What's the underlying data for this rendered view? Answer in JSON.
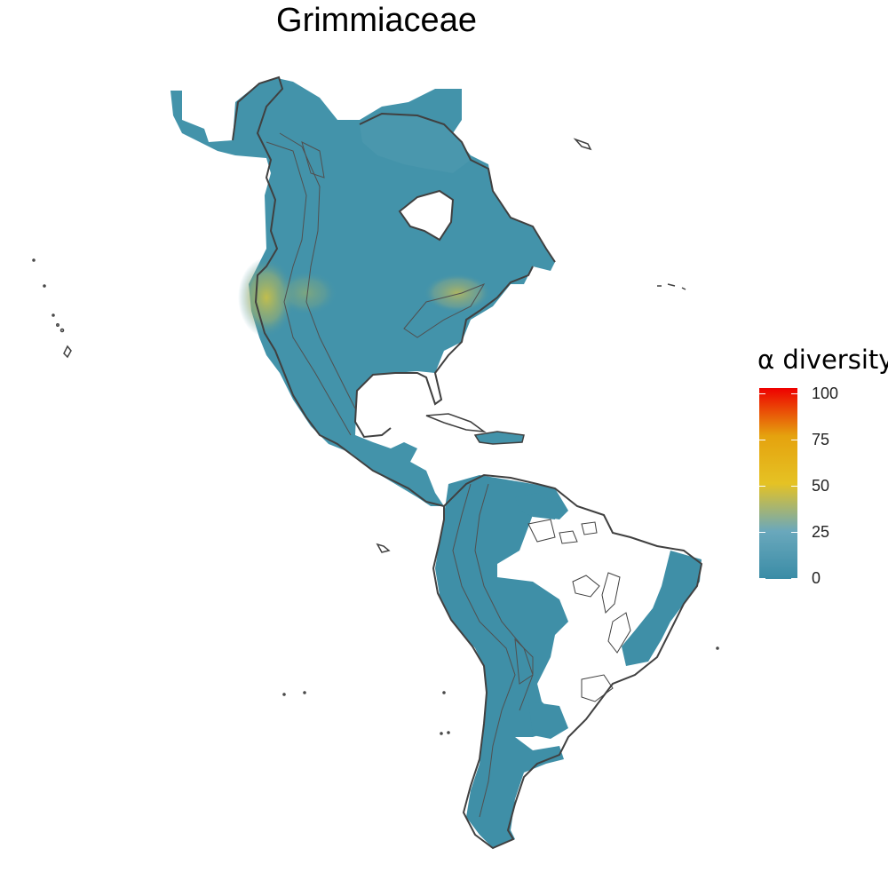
{
  "title": "Grimmiaceae",
  "legend": {
    "title": "α diversity",
    "ticks": [
      {
        "label": "100",
        "value": 100
      },
      {
        "label": "75",
        "value": 75
      },
      {
        "label": "50",
        "value": 50
      },
      {
        "label": "25",
        "value": 25
      },
      {
        "label": "0",
        "value": 0
      }
    ],
    "range": [
      0,
      100
    ],
    "colors": {
      "low": "#3a8ca6",
      "lowmid": "#6aa8bc",
      "mid": "#e5c224",
      "midhigh": "#e5a20e",
      "high": "#ee0000"
    }
  },
  "map": {
    "region": "Americas",
    "base_fill": "#4393aa",
    "base_fill_light": "#5aa2b5",
    "hotspot_fill": "#c8c048",
    "outline_color": "#404040",
    "hotspot_values": {
      "pacific-northwest": 42,
      "great-lakes-northeast": 36,
      "rocky-mountains": 22
    }
  }
}
